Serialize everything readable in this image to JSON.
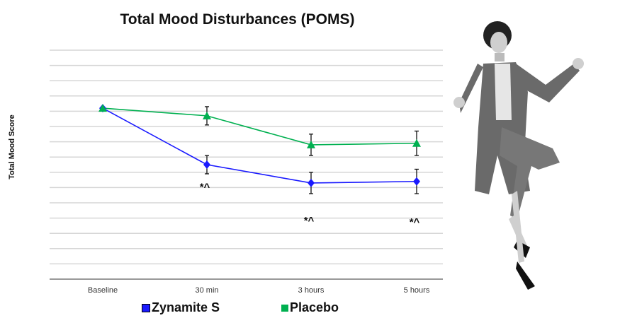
{
  "chart_data": {
    "type": "line",
    "title": "Total Mood Disturbances (POMS)",
    "xlabel": "",
    "ylabel": "Total Mood Score",
    "categories": [
      "Baseline",
      "30 min",
      "3 hours",
      "5 hours"
    ],
    "ylim": [
      0,
      15
    ],
    "grid": true,
    "y_tick_labels_shown": false,
    "legend_position": "bottom",
    "series": [
      {
        "name": "Zynamite S",
        "color": "#1a1aff",
        "marker": "diamond",
        "values": [
          11.2,
          7.5,
          6.3,
          6.4
        ],
        "errors": [
          0,
          0.6,
          0.7,
          0.8
        ]
      },
      {
        "name": "Placebo",
        "color": "#00b050",
        "marker": "triangle",
        "values": [
          11.2,
          10.7,
          8.8,
          8.9
        ],
        "errors": [
          0,
          0.6,
          0.7,
          0.8
        ]
      }
    ],
    "annotations": [
      {
        "category": "30 min",
        "text": "*^",
        "y": 6.0
      },
      {
        "category": "3 hours",
        "text": "*^",
        "y": 3.8
      },
      {
        "category": "5 hours",
        "text": "*^",
        "y": 3.7
      }
    ]
  },
  "image": {
    "subject": "photo-woman-celebrating"
  }
}
